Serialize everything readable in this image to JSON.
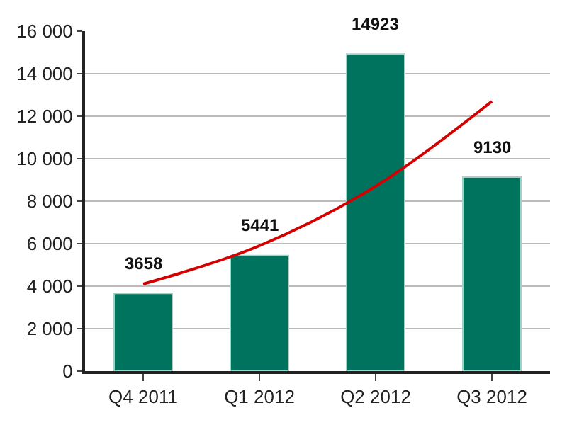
{
  "chart_data": {
    "type": "bar",
    "categories": [
      "Q4 2011",
      "Q1 2012",
      "Q2 2012",
      "Q3 2012"
    ],
    "series": [
      {
        "color": "#00735f",
        "values": [
          3658,
          5441,
          14923,
          9130
        ],
        "data_labels": true
      },
      {
        "type": "line",
        "color": "#d40000",
        "x": [
          "Q4 2011",
          "Q1 2012",
          "Q2 2012",
          "Q3 2012"
        ],
        "values": [
          4100,
          5900,
          8700,
          12700
        ]
      }
    ],
    "ylim": [
      0,
      16000
    ],
    "yticks": [
      0,
      {
        "value": 2000,
        "label": "2 000"
      },
      {
        "value": 4000,
        "label": "4 000"
      },
      {
        "value": 6000,
        "label": "6 000"
      },
      {
        "value": 8000,
        "label": "8 000"
      },
      {
        "value": 10000,
        "label": "10 000"
      },
      {
        "value": 12000,
        "label": "12 000"
      },
      {
        "value": 14000,
        "label": "14 000"
      },
      {
        "value": 16000,
        "label": "16 000"
      }
    ],
    "grid": "y",
    "marker": "none"
  }
}
